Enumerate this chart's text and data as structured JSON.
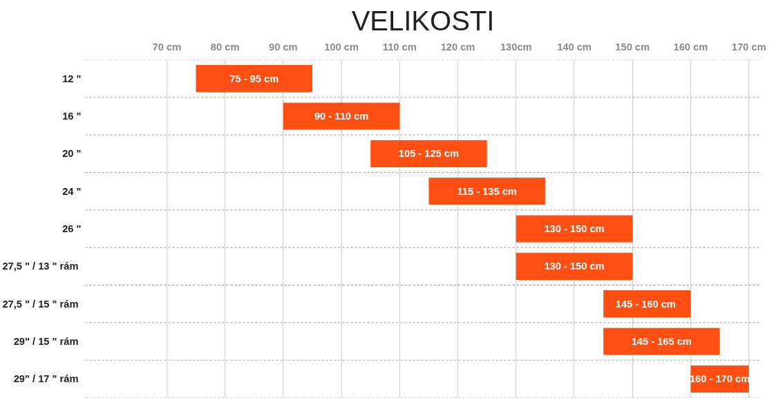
{
  "chart_data": {
    "type": "bar",
    "orientation": "horizontal",
    "title": "VELIKOSTI",
    "categories": [
      "12 \"",
      "16 \"",
      "20 \"",
      "24 \"",
      "26 \"",
      "27,5 \" / 13 \"  rám",
      "27,5 \" / 15 \"  rám",
      "29\" / 15 \"  rám",
      "29\" / 17 \"  rám"
    ],
    "base": [
      75,
      90,
      105,
      115,
      130,
      130,
      145,
      145,
      160
    ],
    "values": [
      20,
      20,
      20,
      20,
      20,
      20,
      15,
      20,
      10
    ],
    "annotations": [
      {
        "text": "75 - 95 cm",
        "x": 85,
        "y": "12 \""
      },
      {
        "text": "90 - 110 cm",
        "x": 100,
        "y": "16 \""
      },
      {
        "text": "105 - 125 cm",
        "x": 115,
        "y": "20 \""
      },
      {
        "text": "115 - 135 cm",
        "x": 125,
        "y": "24 \""
      },
      {
        "text": "130 - 150 cm",
        "x": 140,
        "y": "26 \""
      },
      {
        "text": "130 - 150 cm",
        "x": 140,
        "y": "27,5 \" / 13 \"  rám"
      },
      {
        "text": "145 -  160 cm",
        "x": 152.5,
        "y": "27,5 \" / 15 \"  rám"
      },
      {
        "text": "145 - 165 cm",
        "x": 155,
        "y": "29\" / 15 \"  rám"
      },
      {
        "text": "160 - 170 cm",
        "x": 165,
        "y": "29\" / 17 \"  rám"
      }
    ],
    "color": "#ff4f12",
    "xlim": [
      56,
      172
    ],
    "xticks": [
      {
        "value": 70,
        "label": "70 cm"
      },
      {
        "value": 80,
        "label": "80 cm"
      },
      {
        "value": 90,
        "label": "90 cm"
      },
      {
        "value": 100,
        "label": "100 cm"
      },
      {
        "value": 110,
        "label": "110 cm"
      },
      {
        "value": 120,
        "label": "120 cm"
      },
      {
        "value": 130,
        "label": "130cm"
      },
      {
        "value": 140,
        "label": "140 cm"
      },
      {
        "value": 150,
        "label": "150 cm"
      },
      {
        "value": 160,
        "label": "160 cm"
      },
      {
        "value": 170,
        "label": "170 cm"
      }
    ],
    "grid": true
  }
}
